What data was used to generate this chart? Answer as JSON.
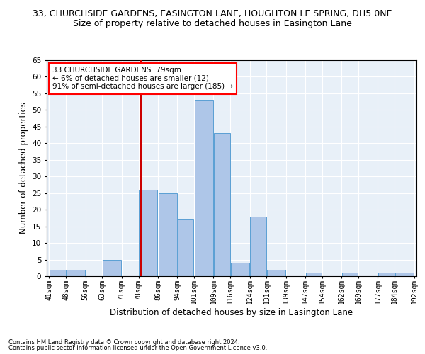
{
  "title": "33, CHURCHSIDE GARDENS, EASINGTON LANE, HOUGHTON LE SPRING, DH5 0NE",
  "subtitle": "Size of property relative to detached houses in Easington Lane",
  "xlabel": "Distribution of detached houses by size in Easington Lane",
  "ylabel": "Number of detached properties",
  "footer_line1": "Contains HM Land Registry data © Crown copyright and database right 2024.",
  "footer_line2": "Contains public sector information licensed under the Open Government Licence v3.0.",
  "annotation_line1": "33 CHURCHSIDE GARDENS: 79sqm",
  "annotation_line2": "← 6% of detached houses are smaller (12)",
  "annotation_line3": "91% of semi-detached houses are larger (185) →",
  "bar_edges": [
    41,
    48,
    56,
    63,
    71,
    78,
    86,
    94,
    101,
    109,
    116,
    124,
    131,
    139,
    147,
    154,
    162,
    169,
    177,
    184,
    192
  ],
  "bar_heights": [
    2,
    2,
    0,
    5,
    0,
    26,
    25,
    17,
    53,
    43,
    4,
    18,
    2,
    0,
    1,
    0,
    1,
    0,
    1,
    1
  ],
  "bar_color": "#aec6e8",
  "bar_edge_color": "#5a9fd4",
  "vline_x": 79,
  "vline_color": "#cc0000",
  "ylim": [
    0,
    65
  ],
  "yticks": [
    0,
    5,
    10,
    15,
    20,
    25,
    30,
    35,
    40,
    45,
    50,
    55,
    60,
    65
  ],
  "bg_color": "#e8f0f8",
  "grid_color": "#ffffff",
  "title_fontsize": 9,
  "subtitle_fontsize": 9,
  "xlabel_fontsize": 8.5,
  "ylabel_fontsize": 8.5,
  "tick_fontsize": 7,
  "annotation_fontsize": 7.5,
  "footer_fontsize": 6
}
